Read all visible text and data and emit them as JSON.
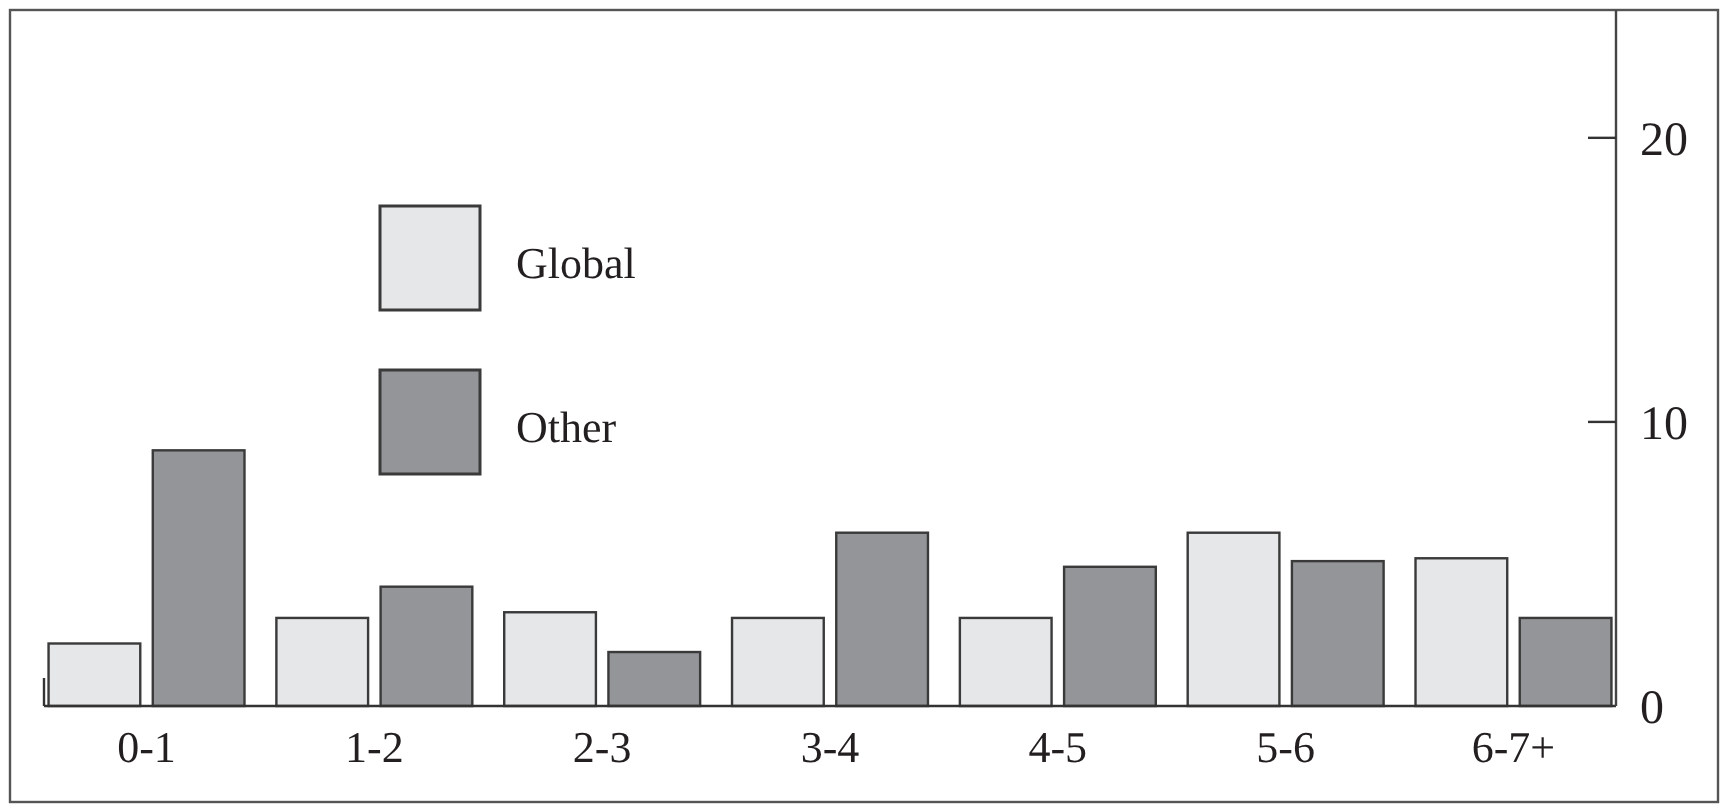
{
  "chart_data": {
    "type": "bar",
    "categories": [
      "0-1",
      "1-2",
      "2-3",
      "3-4",
      "4-5",
      "5-6",
      "6-7+"
    ],
    "series": [
      {
        "name": "Global",
        "color": "#e6e7e9",
        "values": [
          2.2,
          3.1,
          3.3,
          3.1,
          3.1,
          6.1,
          5.2
        ]
      },
      {
        "name": "Other",
        "color": "#939598",
        "values": [
          9.0,
          4.2,
          1.9,
          6.1,
          4.9,
          5.1,
          3.1
        ]
      }
    ],
    "ylim": [
      0,
      24.5
    ],
    "yticks": [
      0,
      10,
      20
    ],
    "grid": false,
    "legend": "top left"
  }
}
